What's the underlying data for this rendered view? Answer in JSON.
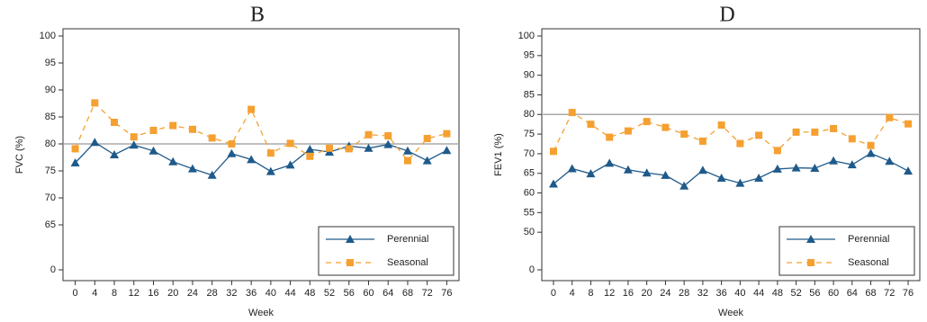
{
  "chart_data": [
    {
      "type": "line",
      "title": "B",
      "xlabel": "Week",
      "ylabel": "FVC (%)",
      "x": [
        0,
        4,
        8,
        12,
        16,
        20,
        24,
        28,
        32,
        36,
        40,
        44,
        48,
        52,
        56,
        60,
        64,
        68,
        72,
        76
      ],
      "xlim": [
        -2.5,
        78.5
      ],
      "xticks": [
        0,
        4,
        8,
        12,
        16,
        20,
        24,
        28,
        32,
        36,
        40,
        44,
        48,
        52,
        56,
        60,
        64,
        68,
        72,
        76
      ],
      "ylim": [
        0,
        100
      ],
      "yticks": [
        0,
        65,
        70,
        75,
        80,
        85,
        90,
        95,
        100
      ],
      "ybreak": [
        0,
        60
      ],
      "hline": 80,
      "legend": "lower right",
      "series": [
        {
          "name": "Perennial",
          "color": "#1f5a8a",
          "marker": "triangle",
          "dash": false,
          "values": [
            76.5,
            80.3,
            78.0,
            79.8,
            78.7,
            76.7,
            75.4,
            74.2,
            78.2,
            77.1,
            74.9,
            76.1,
            79.0,
            78.5,
            79.6,
            79.2,
            79.9,
            78.7,
            76.9,
            78.8
          ]
        },
        {
          "name": "Seasonal",
          "color": "#f5a030",
          "marker": "square",
          "dash": true,
          "values": [
            79.1,
            87.6,
            84.0,
            81.3,
            82.5,
            83.4,
            82.7,
            81.1,
            80.0,
            86.4,
            78.3,
            80.1,
            77.7,
            79.2,
            79.1,
            81.7,
            81.5,
            76.9,
            81.0,
            81.9
          ]
        }
      ]
    },
    {
      "type": "line",
      "title": "D",
      "xlabel": "Week",
      "ylabel": "FEV1 (%)",
      "x": [
        0,
        4,
        8,
        12,
        16,
        20,
        24,
        28,
        32,
        36,
        40,
        44,
        48,
        52,
        56,
        60,
        64,
        68,
        72,
        76
      ],
      "xlim": [
        -2.5,
        78.5
      ],
      "xticks": [
        0,
        4,
        8,
        12,
        16,
        20,
        24,
        28,
        32,
        36,
        40,
        44,
        48,
        52,
        56,
        60,
        64,
        68,
        72,
        76
      ],
      "ylim": [
        0,
        100
      ],
      "yticks": [
        0,
        50,
        55,
        60,
        65,
        70,
        75,
        80,
        85,
        90,
        95,
        100
      ],
      "ybreak": [
        0,
        45
      ],
      "hline": 80,
      "legend": "lower right",
      "series": [
        {
          "name": "Perennial",
          "color": "#1f5a8a",
          "marker": "triangle",
          "dash": false,
          "values": [
            62.3,
            66.2,
            64.9,
            67.6,
            65.9,
            65.1,
            64.5,
            61.8,
            65.8,
            63.8,
            62.5,
            63.8,
            66.1,
            66.4,
            66.3,
            68.2,
            67.2,
            70.1,
            68.1,
            65.6
          ]
        },
        {
          "name": "Seasonal",
          "color": "#f5a030",
          "marker": "square",
          "dash": true,
          "values": [
            70.6,
            80.5,
            77.5,
            74.2,
            75.8,
            78.2,
            76.7,
            75.0,
            73.2,
            77.3,
            72.6,
            74.7,
            70.8,
            75.5,
            75.5,
            76.4,
            73.8,
            72.1,
            79.2,
            77.6
          ]
        }
      ]
    }
  ]
}
